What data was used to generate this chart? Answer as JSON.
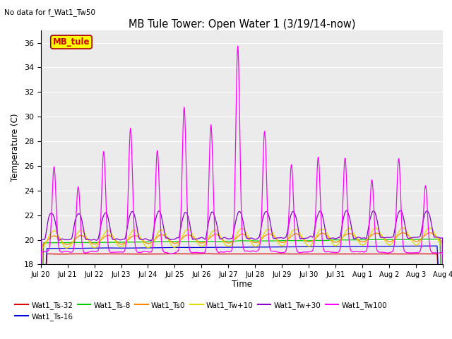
{
  "title": "MB Tule Tower: Open Water 1 (3/19/14-now)",
  "suptitle": "No data for f_Wat1_Tw50",
  "ylabel": "Temperature (C)",
  "xlabel": "Time",
  "ylim": [
    18,
    37
  ],
  "yticks": [
    18,
    20,
    22,
    24,
    26,
    28,
    30,
    32,
    34,
    36
  ],
  "legend_box_label": "MB_tule",
  "legend_box_color": "#ffff00",
  "legend_box_border": "#aa0000",
  "series_order": [
    "Wat1_Ts-32",
    "Wat1_Ts-16",
    "Wat1_Ts-8",
    "Wat1_Ts0",
    "Wat1_Tw+10",
    "Wat1_Tw+30",
    "Wat1_Tw100"
  ],
  "series": {
    "Wat1_Ts-32": {
      "color": "#dd0000"
    },
    "Wat1_Ts-16": {
      "color": "#0000dd"
    },
    "Wat1_Ts-8": {
      "color": "#00cc00"
    },
    "Wat1_Ts0": {
      "color": "#ff8800"
    },
    "Wat1_Tw+10": {
      "color": "#dddd00"
    },
    "Wat1_Tw+30": {
      "color": "#8800cc"
    },
    "Wat1_Tw100": {
      "color": "#ff00ff"
    }
  },
  "xtick_labels": [
    "Jul 20",
    "Jul 21",
    "Jul 22",
    "Jul 23",
    "Jul 24",
    "Jul 25",
    "Jul 26",
    "Jul 27",
    "Jul 28",
    "Jul 29",
    "Jul 30",
    "Jul 31",
    "Aug 1",
    "Aug 2",
    "Aug 3",
    "Aug 4"
  ],
  "n_points": 960,
  "plot_bg_color": "#ebebeb",
  "grid_color": "#ffffff",
  "figsize": [
    6.4,
    4.8
  ],
  "dpi": 100
}
